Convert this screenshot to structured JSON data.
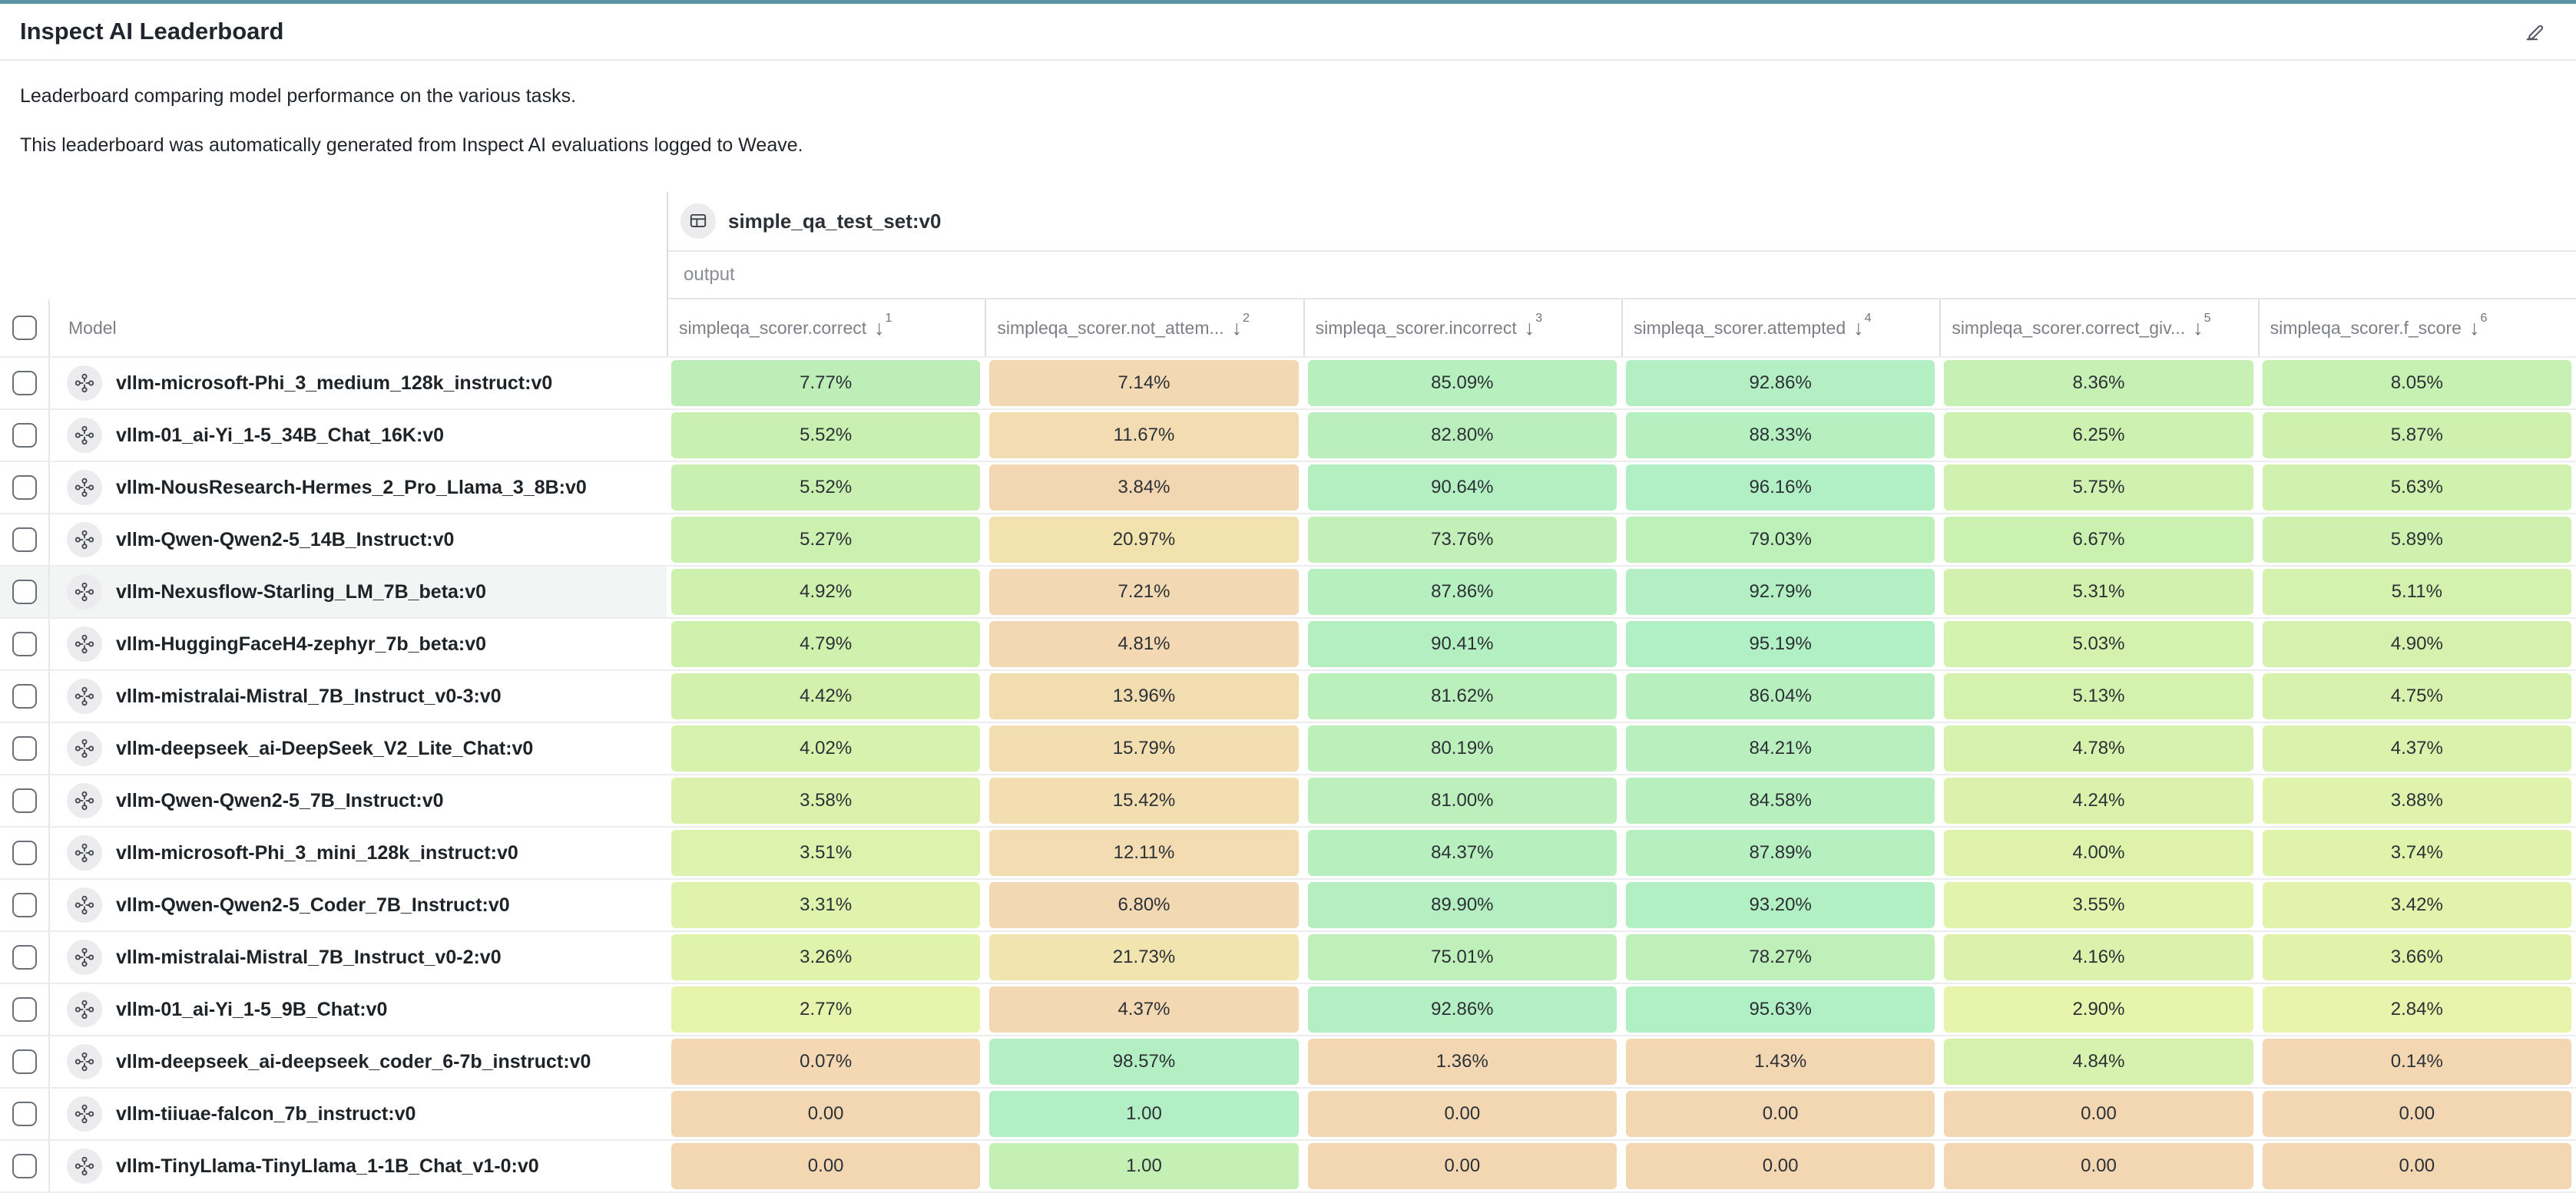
{
  "page": {
    "title": "Inspect AI Leaderboard",
    "description_lines": [
      "Leaderboard comparing model performance on the various tasks.",
      "This leaderboard was automatically generated from Inspect AI evaluations logged to Weave."
    ]
  },
  "colors": {
    "top_accent_bar": "#5b95a5",
    "heatmap_green": "#b2efc4",
    "heatmap_yellow": "#eff0ab",
    "heatmap_tan": "#f3d7b3",
    "row_highlight": "#f3f4f4"
  },
  "table": {
    "group_header": {
      "icon": "table-icon",
      "label": "simple_qa_test_set:v0"
    },
    "subgroup_label": "output",
    "model_column_label": "Model",
    "columns": [
      {
        "label": "simpleqa_scorer.correct",
        "sort_order": "1"
      },
      {
        "label": "simpleqa_scorer.not_attem...",
        "sort_order": "2"
      },
      {
        "label": "simpleqa_scorer.incorrect",
        "sort_order": "3"
      },
      {
        "label": "simpleqa_scorer.attempted",
        "sort_order": "4"
      },
      {
        "label": "simpleqa_scorer.correct_giv...",
        "sort_order": "5"
      },
      {
        "label": "simpleqa_scorer.f_score",
        "sort_order": "6"
      }
    ],
    "rows": [
      {
        "model": "vllm-microsoft-Phi_3_medium_128k_instruct:v0",
        "highlighted": false,
        "values": [
          "7.77%",
          "7.14%",
          "85.09%",
          "92.86%",
          "8.36%",
          "8.05%"
        ],
        "bgs": [
          "#bdeeb7",
          "#f3d9b3",
          "#b8efbf",
          "#b3efc3",
          "#c6f0b4",
          "#c7f0b3"
        ]
      },
      {
        "model": "vllm-01_ai-Yi_1-5_34B_Chat_16K:v0",
        "highlighted": false,
        "values": [
          "5.52%",
          "11.67%",
          "82.80%",
          "88.33%",
          "6.25%",
          "5.87%"
        ],
        "bgs": [
          "#c9f0b0",
          "#f3dcb1",
          "#baefbd",
          "#b6efc0",
          "#cdf1b0",
          "#cff1af"
        ]
      },
      {
        "model": "vllm-NousResearch-Hermes_2_Pro_Llama_3_8B:v0",
        "highlighted": false,
        "values": [
          "5.52%",
          "3.84%",
          "90.64%",
          "96.16%",
          "5.75%",
          "5.63%"
        ],
        "bgs": [
          "#c9f0b0",
          "#f3d7b3",
          "#b4efc2",
          "#b1f0c5",
          "#d0f1af",
          "#d1f1ae"
        ]
      },
      {
        "model": "vllm-Qwen-Qwen2-5_14B_Instruct:v0",
        "highlighted": false,
        "values": [
          "5.27%",
          "20.97%",
          "73.76%",
          "79.03%",
          "6.67%",
          "5.89%"
        ],
        "bgs": [
          "#cbf0af",
          "#f2e3ae",
          "#c2f0b8",
          "#bef0ba",
          "#cbf1b1",
          "#cff1af"
        ]
      },
      {
        "model": "vllm-Nexusflow-Starling_LM_7B_beta:v0",
        "highlighted": true,
        "values": [
          "4.92%",
          "7.21%",
          "87.86%",
          "92.79%",
          "5.31%",
          "5.11%"
        ],
        "bgs": [
          "#cef1ae",
          "#f3d9b3",
          "#b6efc0",
          "#b3efc3",
          "#d3f1ae",
          "#d4f1ae"
        ]
      },
      {
        "model": "vllm-HuggingFaceH4-zephyr_7b_beta:v0",
        "highlighted": false,
        "values": [
          "4.79%",
          "4.81%",
          "90.41%",
          "95.19%",
          "5.03%",
          "4.90%"
        ],
        "bgs": [
          "#cff1ae",
          "#f3d8b3",
          "#b4efc2",
          "#b1efc4",
          "#d5f1ae",
          "#d6f1ae"
        ]
      },
      {
        "model": "vllm-mistralai-Mistral_7B_Instruct_v0-3:v0",
        "highlighted": false,
        "values": [
          "4.42%",
          "13.96%",
          "81.62%",
          "86.04%",
          "5.13%",
          "4.75%"
        ],
        "bgs": [
          "#d3f1ad",
          "#f2ddb0",
          "#bbefbc",
          "#b7efbf",
          "#d4f1ae",
          "#d7f2ad"
        ]
      },
      {
        "model": "vllm-deepseek_ai-DeepSeek_V2_Lite_Chat:v0",
        "highlighted": false,
        "values": [
          "4.02%",
          "15.79%",
          "80.19%",
          "84.21%",
          "4.78%",
          "4.37%"
        ],
        "bgs": [
          "#d7f2ad",
          "#f2deb0",
          "#bdefbb",
          "#b9efbe",
          "#d7f2ad",
          "#dbf2ac"
        ]
      },
      {
        "model": "vllm-Qwen-Qwen2-5_7B_Instruct:v0",
        "highlighted": false,
        "values": [
          "3.58%",
          "15.42%",
          "81.00%",
          "84.58%",
          "4.24%",
          "3.88%"
        ],
        "bgs": [
          "#dcf2ac",
          "#f2deb0",
          "#bcefbc",
          "#b8efbe",
          "#dcf2ac",
          "#dff3ac"
        ]
      },
      {
        "model": "vllm-microsoft-Phi_3_mini_128k_instruct:v0",
        "highlighted": false,
        "values": [
          "3.51%",
          "12.11%",
          "84.37%",
          "87.89%",
          "4.00%",
          "3.74%"
        ],
        "bgs": [
          "#ddf2ac",
          "#f3dcb1",
          "#b8efbe",
          "#b6efc0",
          "#def2ac",
          "#e0f3ab"
        ]
      },
      {
        "model": "vllm-Qwen-Qwen2-5_Coder_7B_Instruct:v0",
        "highlighted": false,
        "values": [
          "3.31%",
          "6.80%",
          "89.90%",
          "93.20%",
          "3.55%",
          "3.42%"
        ],
        "bgs": [
          "#e0f3ac",
          "#f3d9b3",
          "#b5efc1",
          "#b2efc3",
          "#e2f3ab",
          "#e3f3ab"
        ]
      },
      {
        "model": "vllm-mistralai-Mistral_7B_Instruct_v0-2:v0",
        "highlighted": false,
        "values": [
          "3.26%",
          "21.73%",
          "75.01%",
          "78.27%",
          "4.16%",
          "3.66%"
        ],
        "bgs": [
          "#e0f3ab",
          "#f2e4ae",
          "#c0f0b9",
          "#bff0ba",
          "#dcf2ac",
          "#e1f3ab"
        ]
      },
      {
        "model": "vllm-01_ai-Yi_1-5_9B_Chat:v0",
        "highlighted": false,
        "values": [
          "2.77%",
          "4.37%",
          "92.86%",
          "95.63%",
          "2.90%",
          "2.84%"
        ],
        "bgs": [
          "#e7f4ab",
          "#f3d8b3",
          "#b3efc3",
          "#b1efc5",
          "#e7f4ab",
          "#e8f4ab"
        ]
      },
      {
        "model": "vllm-deepseek_ai-deepseek_coder_6-7b_instruct:v0",
        "highlighted": false,
        "values": [
          "0.07%",
          "98.57%",
          "1.36%",
          "1.43%",
          "4.84%",
          "0.14%"
        ],
        "bgs": [
          "#f3d8b3",
          "#b4efc3",
          "#f3d7b3",
          "#f3d7b3",
          "#d6f2ae",
          "#f3d7b3"
        ]
      },
      {
        "model": "vllm-tiiuae-falcon_7b_instruct:v0",
        "highlighted": false,
        "values": [
          "0.00",
          "1.00",
          "0.00",
          "0.00",
          "0.00",
          "0.00"
        ],
        "bgs": [
          "#f3d7b3",
          "#b3efc4",
          "#f3d7b3",
          "#f3d7b3",
          "#f3d7b3",
          "#f3d7b3"
        ]
      },
      {
        "model": "vllm-TinyLlama-TinyLlama_1-1B_Chat_v1-0:v0",
        "highlighted": false,
        "values": [
          "0.00",
          "1.00",
          "0.00",
          "0.00",
          "0.00",
          "0.00"
        ],
        "bgs": [
          "#f3d7b3",
          "#c4f0b5",
          "#f3d7b3",
          "#f3d7b3",
          "#f3d7b3",
          "#f3d7b3"
        ]
      }
    ]
  }
}
